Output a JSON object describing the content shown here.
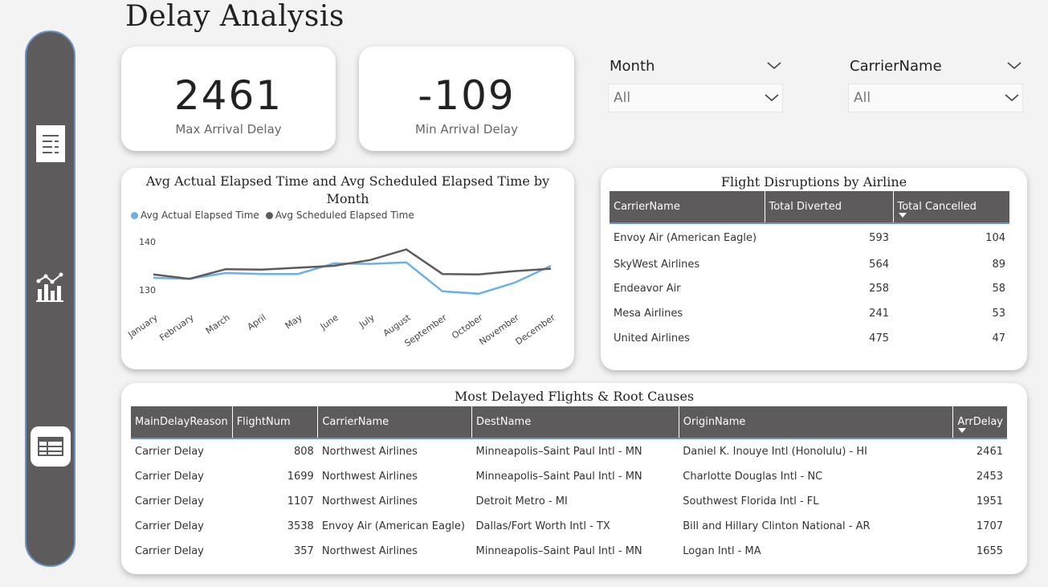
{
  "page_title": "Delay Analysis",
  "kpis": [
    {
      "value": "2461",
      "label": "Max Arrival Delay"
    },
    {
      "value": "-109",
      "label": "Min Arrival Delay"
    }
  ],
  "slicers": [
    {
      "title": "Month",
      "value": "All"
    },
    {
      "title": "CarrierName",
      "value": "All"
    }
  ],
  "nav": {
    "items": [
      "document-icon",
      "chart-icon",
      "table-icon"
    ]
  },
  "colors": {
    "sidebar": "#5e5b5c",
    "accent": "#6a94c8",
    "actual_line": "#6cb0e8",
    "scheduled_line": "#5e5b5c"
  },
  "line_chart": {
    "title": "Avg Actual Elapsed Time and Avg Scheduled Elapsed Time by Month",
    "legend": [
      "Avg Actual Elapsed Time",
      "Avg Scheduled Elapsed Time"
    ]
  },
  "chart_data": {
    "type": "line",
    "title": "Avg Actual Elapsed Time and Avg Scheduled Elapsed Time by Month",
    "categories": [
      "January",
      "February",
      "March",
      "April",
      "May",
      "June",
      "July",
      "August",
      "September",
      "October",
      "November",
      "December"
    ],
    "series": [
      {
        "name": "Avg Actual Elapsed Time",
        "values": [
          132.5,
          132.3,
          133.5,
          133.3,
          133.3,
          135.5,
          135.4,
          135.7,
          129.7,
          129.2,
          131.5,
          135.0
        ],
        "color": "#6cb0e8"
      },
      {
        "name": "Avg Scheduled Elapsed Time",
        "values": [
          133.2,
          132.3,
          134.3,
          134.2,
          134.6,
          135.0,
          136.2,
          138.4,
          133.3,
          133.2,
          133.9,
          134.4
        ],
        "color": "#5e5b5c"
      }
    ],
    "yticks": [
      130,
      140
    ],
    "ylim": [
      127,
      142
    ],
    "grid": false,
    "legend_position": "top-left"
  },
  "disruptions": {
    "title": "Flight Disruptions by Airline",
    "columns": [
      "CarrierName",
      "Total Diverted",
      "Total Cancelled"
    ],
    "rows": [
      [
        "Envoy Air (American Eagle)",
        "593",
        "104"
      ],
      [
        "SkyWest Airlines",
        "564",
        "89"
      ],
      [
        "Endeavor Air",
        "258",
        "58"
      ],
      [
        "Mesa Airlines",
        "241",
        "53"
      ],
      [
        "United Airlines",
        "475",
        "47"
      ]
    ]
  },
  "delayed_flights": {
    "title": "Most Delayed Flights & Root Causes",
    "columns": [
      "MainDelayReason",
      "FlightNum",
      "CarrierName",
      "DestName",
      "OriginName",
      "ArrDelay"
    ],
    "rows": [
      [
        "Carrier Delay",
        "808",
        "Northwest Airlines",
        "Minneapolis–Saint Paul Intl - MN",
        "Daniel K. Inouye Intl (Honolulu) - HI",
        "2461"
      ],
      [
        "Carrier Delay",
        "1699",
        "Northwest Airlines",
        "Minneapolis–Saint Paul Intl - MN",
        "Charlotte Douglas Intl - NC",
        "2453"
      ],
      [
        "Carrier Delay",
        "1107",
        "Northwest Airlines",
        "Detroit Metro - MI",
        "Southwest Florida Intl - FL",
        "1951"
      ],
      [
        "Carrier Delay",
        "3538",
        "Envoy Air (American Eagle)",
        "Dallas/Fort Worth Intl - TX",
        "Bill and Hillary Clinton National - AR",
        "1707"
      ],
      [
        "Carrier Delay",
        "357",
        "Northwest Airlines",
        "Minneapolis–Saint Paul Intl - MN",
        "Logan Intl - MA",
        "1655"
      ]
    ]
  }
}
